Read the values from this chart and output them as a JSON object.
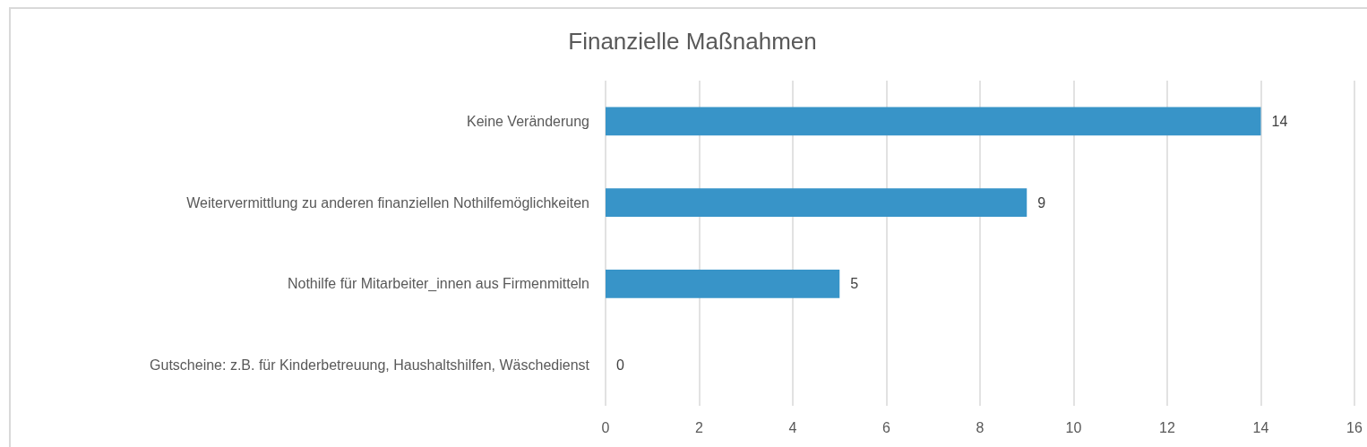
{
  "chart_data": {
    "type": "bar",
    "orientation": "horizontal",
    "title": "Finanzielle Maßnahmen",
    "categories": [
      "Keine Veränderung",
      "Weitervermittlung zu anderen finanziellen Nothilfemöglichkeiten",
      "Nothilfe für Mitarbeiter_innen aus Firmenmitteln",
      "Gutscheine: z.B. für Kinderbetreuung, Haushaltshilfen, Wäschedienst"
    ],
    "values": [
      14,
      9,
      5,
      0
    ],
    "color": "#3894c8",
    "xlim": [
      0,
      16
    ],
    "xticks": [
      0,
      2,
      4,
      6,
      8,
      10,
      12,
      14,
      16
    ],
    "grid": "x",
    "data_labels": true
  }
}
